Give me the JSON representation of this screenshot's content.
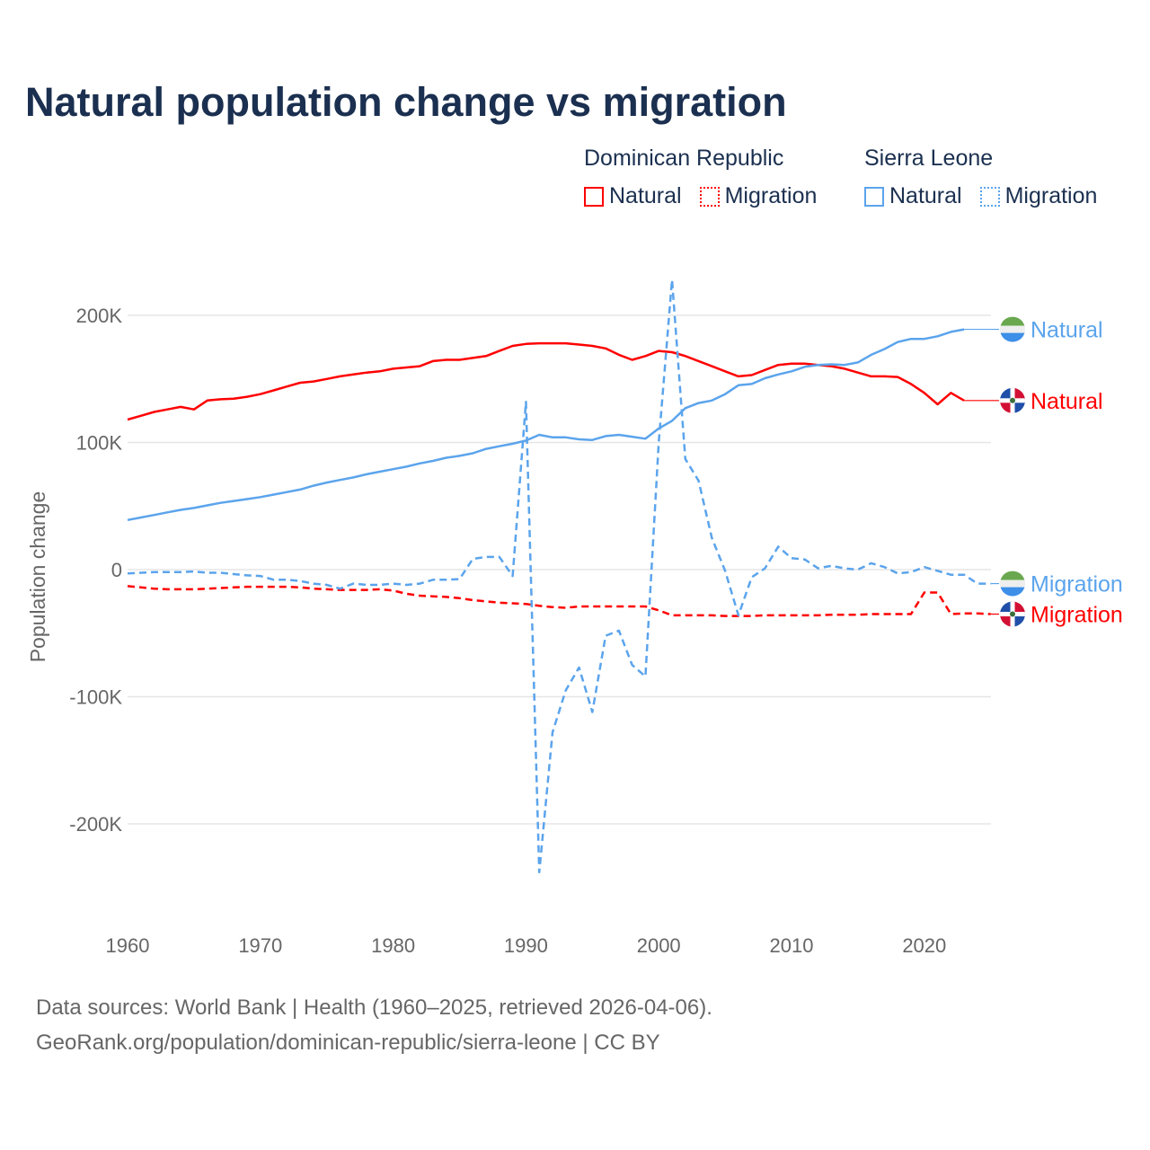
{
  "title": "Natural population change vs migration",
  "legend": {
    "groups": [
      {
        "name": "Dominican Republic",
        "items": [
          "Natural",
          "Migration"
        ],
        "color": "#ff0000"
      },
      {
        "name": "Sierra Leone",
        "items": [
          "Natural",
          "Migration"
        ],
        "color": "#5ba4ec"
      }
    ]
  },
  "footer": {
    "line1": "Data sources: World Bank | Health (1960–2025, retrieved 2026-04-06).",
    "line2": "GeoRank.org/population/dominican-republic/sierra-leone | CC BY"
  },
  "chart_data": {
    "type": "line",
    "title": "Natural population change vs migration",
    "xlabel": "",
    "ylabel": "Population change",
    "xlim": [
      1960,
      2025
    ],
    "ylim": [
      -250000,
      250000
    ],
    "x_ticks": [
      1960,
      1970,
      1980,
      1990,
      2000,
      2010,
      2020
    ],
    "y_ticks": [
      {
        "v": 200000,
        "label": "200K"
      },
      {
        "v": 100000,
        "label": "100K"
      },
      {
        "v": 0,
        "label": "0"
      },
      {
        "v": -100000,
        "label": "-100K"
      },
      {
        "v": -200000,
        "label": "-200K"
      }
    ],
    "grid": true,
    "start_year": 1960,
    "series": [
      {
        "name": "Dominican Republic Natural",
        "end_label": "Natural",
        "country": "dr",
        "color": "#ff0000",
        "dashed": false,
        "values": [
          118,
          121,
          124,
          126,
          128,
          126,
          133,
          134,
          134.5,
          136,
          138,
          141,
          144,
          147,
          148,
          150,
          152,
          153.5,
          155,
          156,
          158,
          159,
          160,
          164,
          165,
          165,
          166.5,
          168,
          172,
          176,
          177.5,
          178,
          178,
          178,
          177,
          176,
          174,
          169,
          165,
          168,
          172,
          171,
          168,
          164,
          160,
          156,
          152,
          153,
          157,
          161,
          162,
          162,
          161,
          160,
          158,
          155,
          152,
          152,
          151.5,
          146,
          139,
          130,
          139,
          133
        ]
      },
      {
        "name": "Dominican Republic Migration",
        "end_label": "Migration",
        "country": "dr",
        "color": "#ff0000",
        "dashed": true,
        "values": [
          -13,
          -14,
          -15,
          -15.5,
          -15.5,
          -15.5,
          -15,
          -14.5,
          -14,
          -13.5,
          -13.5,
          -13.5,
          -13.5,
          -14,
          -15,
          -15.5,
          -16,
          -16,
          -16,
          -15.5,
          -16.5,
          -19,
          -20.5,
          -21,
          -21.5,
          -22.5,
          -24,
          -25,
          -26,
          -26.5,
          -27,
          -28.5,
          -29.5,
          -30,
          -29,
          -29,
          -29,
          -29,
          -29,
          -29,
          -32,
          -36,
          -36,
          -36,
          -36,
          -36.5,
          -36.5,
          -36.5,
          -36,
          -36,
          -36,
          -36,
          -36,
          -35.5,
          -35.5,
          -35.5,
          -35,
          -35,
          -35,
          -35,
          -18,
          -18,
          -35,
          -34.5,
          -34.5,
          -35
        ]
      },
      {
        "name": "Sierra Leone Natural",
        "end_label": "Natural",
        "country": "sl",
        "color": "#5ba4ec",
        "dashed": false,
        "values": [
          39,
          41,
          43,
          45,
          47,
          48.5,
          50.5,
          52.5,
          54,
          55.5,
          57,
          59,
          61,
          63,
          66,
          68.5,
          70.5,
          72.5,
          75,
          77,
          79,
          81,
          83.5,
          85.5,
          88,
          89.5,
          91.5,
          95,
          97,
          99,
          101.5,
          106,
          104,
          104,
          102.5,
          102,
          105,
          106,
          104.5,
          103,
          111,
          117,
          127,
          131,
          133,
          138,
          145,
          146,
          150.5,
          153.5,
          156,
          159.5,
          161,
          161.5,
          161,
          163,
          169,
          173.5,
          179,
          181.5,
          181.5,
          183.5,
          187,
          189
        ]
      },
      {
        "name": "Sierra Leone Migration",
        "end_label": "Migration",
        "country": "sl",
        "color": "#5ba4ec",
        "dashed": true,
        "values": [
          -3,
          -2.5,
          -2,
          -2,
          -2,
          -1.5,
          -2.5,
          -2.5,
          -3.5,
          -4.5,
          -5,
          -8,
          -8,
          -9,
          -11,
          -12,
          -15,
          -11,
          -12,
          -12,
          -11,
          -12,
          -11,
          -8,
          -8,
          -7.5,
          8.5,
          10,
          10,
          -5,
          132,
          -238,
          -128,
          -95,
          -77,
          -112,
          -52,
          -48,
          -75,
          -84,
          100,
          228,
          87,
          70,
          25,
          -1,
          -36,
          -6,
          1,
          18,
          9,
          8,
          1,
          3,
          1,
          0,
          5,
          2,
          -3,
          -2,
          2,
          -1,
          -4,
          -4,
          -11,
          -11
        ]
      }
    ],
    "units": "thousands"
  }
}
